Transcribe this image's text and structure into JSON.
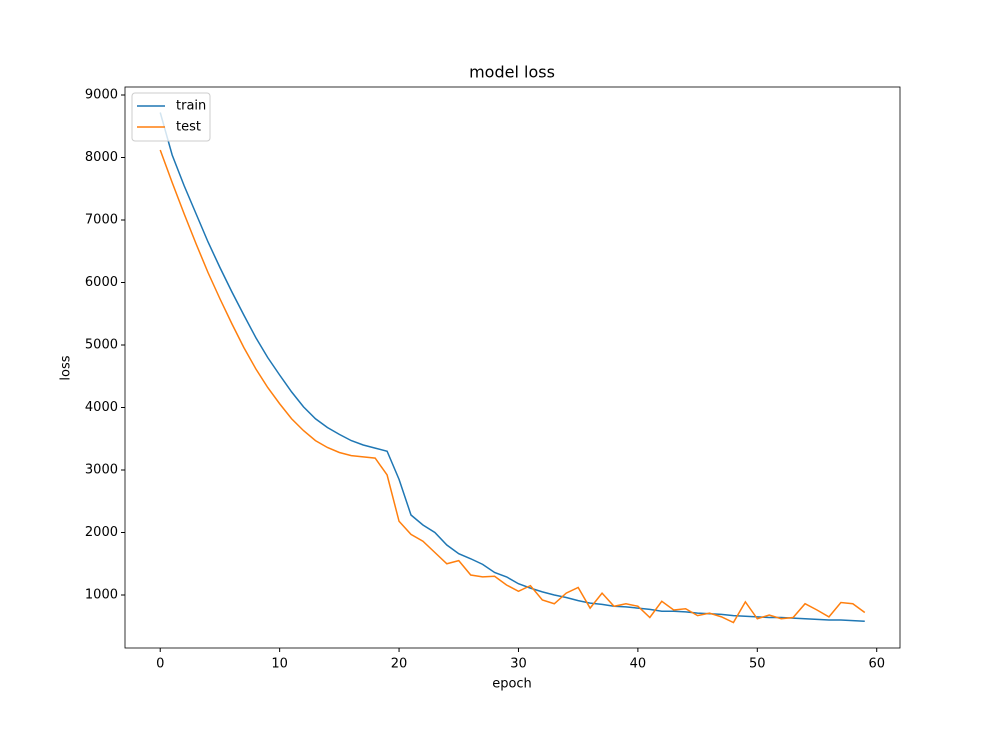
{
  "chart_data": {
    "type": "line",
    "title": "model loss",
    "x_label": "epoch",
    "y_label": "loss",
    "x": [
      0,
      1,
      2,
      3,
      4,
      5,
      6,
      7,
      8,
      9,
      10,
      11,
      12,
      13,
      14,
      15,
      16,
      17,
      18,
      19,
      20,
      21,
      22,
      23,
      24,
      25,
      26,
      27,
      28,
      29,
      30,
      31,
      32,
      33,
      34,
      35,
      36,
      37,
      38,
      39,
      40,
      41,
      42,
      43,
      44,
      45,
      46,
      47,
      48,
      49,
      50,
      51,
      52,
      53,
      54,
      55,
      56,
      57,
      58,
      59
    ],
    "series": [
      {
        "name": "train",
        "color": "#1f77b4",
        "values": [
          8720,
          8040,
          7550,
          7100,
          6650,
          6240,
          5850,
          5480,
          5120,
          4800,
          4520,
          4250,
          4010,
          3820,
          3680,
          3570,
          3470,
          3400,
          3350,
          3300,
          2850,
          2280,
          2120,
          2000,
          1800,
          1660,
          1580,
          1490,
          1360,
          1290,
          1180,
          1110,
          1050,
          1000,
          960,
          910,
          870,
          850,
          820,
          810,
          790,
          770,
          740,
          740,
          730,
          710,
          700,
          690,
          670,
          660,
          650,
          640,
          640,
          630,
          620,
          610,
          600,
          600,
          590,
          580
        ]
      },
      {
        "name": "test",
        "color": "#ff7f0e",
        "values": [
          8120,
          7600,
          7100,
          6620,
          6160,
          5740,
          5340,
          4960,
          4620,
          4320,
          4060,
          3820,
          3630,
          3470,
          3360,
          3280,
          3230,
          3210,
          3190,
          2920,
          2180,
          1970,
          1860,
          1680,
          1500,
          1550,
          1320,
          1290,
          1300,
          1160,
          1060,
          1150,
          920,
          860,
          1030,
          1120,
          790,
          1030,
          820,
          860,
          820,
          640,
          900,
          760,
          780,
          670,
          710,
          650,
          560,
          890,
          620,
          680,
          620,
          640,
          860,
          760,
          650,
          880,
          860,
          720
        ]
      }
    ],
    "xlim": [
      -2.95,
      61.95
    ],
    "ylim": [
      152,
      9128
    ],
    "xticks": [
      0,
      10,
      20,
      30,
      40,
      50,
      60
    ],
    "yticks": [
      1000,
      2000,
      3000,
      4000,
      5000,
      6000,
      7000,
      8000,
      9000
    ],
    "legend": "upper left"
  }
}
